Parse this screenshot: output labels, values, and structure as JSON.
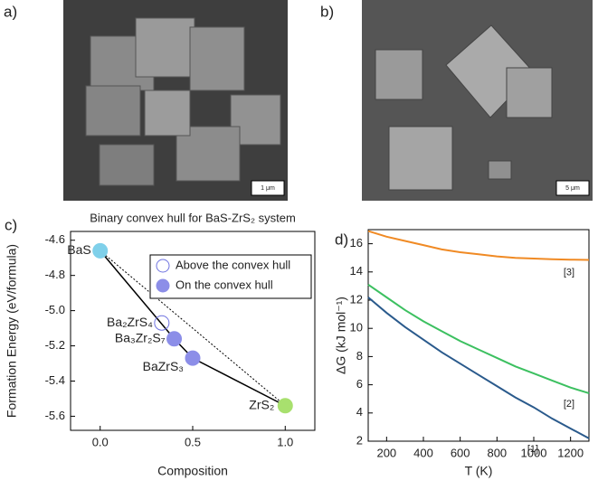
{
  "panels": {
    "a": {
      "label": "a)",
      "scale_bar": "1 μm"
    },
    "b": {
      "label": "b)",
      "scale_bar": "5 μm"
    }
  },
  "chart_data": [
    {
      "type": "scatter",
      "panel_label": "c)",
      "title": "Binary convex hull for BaS-ZrS₂ system",
      "x_label": "Composition",
      "y_label": "Formation Energy (eV/formula)",
      "xlim": [
        -0.16,
        1.16
      ],
      "ylim": [
        -5.68,
        -4.55
      ],
      "xticks": [
        {
          "value": 0,
          "label": "0.0"
        },
        0.5,
        {
          "value": 1,
          "label": "1.0"
        }
      ],
      "yticks": [
        -4.6,
        -4.8,
        {
          "value": -5,
          "label": "-5.0"
        },
        -5.2,
        -5.4,
        -5.6
      ],
      "legend": "upper right",
      "series": [
        {
          "name": "Above the convex hull",
          "marker": "open",
          "color": "#6f73e0",
          "x": [
            0.333
          ],
          "values": [
            -5.07
          ],
          "point_labels": [
            "Ba₂ZrS₄"
          ]
        },
        {
          "name": "On the convex hull",
          "marker": "filled",
          "color": "#8c8ee8",
          "x": [
            0,
            0.4,
            0.5,
            1
          ],
          "values": [
            -4.66,
            -5.16,
            -5.27,
            -5.54
          ],
          "point_labels": [
            "BaS",
            "Ba₃Zr₂S₇",
            "BaZrS₃",
            "ZrS₂"
          ],
          "point_colors": [
            "#7fd0ea",
            "#8c8ee8",
            "#8c8ee8",
            "#a8e06e"
          ]
        }
      ]
    },
    {
      "type": "line",
      "panel_label": "d)",
      "x_label": "T (K)",
      "y_label": "ΔG (kJ mol⁻¹)",
      "xlim": [
        100,
        1300
      ],
      "ylim": [
        2,
        17
      ],
      "xticks": [
        200,
        400,
        600,
        800,
        1000,
        1200
      ],
      "yticks": [
        2,
        4,
        6,
        8,
        10,
        12,
        14,
        16
      ],
      "x": [
        100,
        200,
        300,
        400,
        500,
        600,
        700,
        800,
        900,
        1000,
        1100,
        1200,
        1300
      ],
      "series": [
        {
          "name": "[1]",
          "color": "#2a5a8c",
          "values": [
            12.2,
            11.1,
            10.1,
            9.2,
            8.3,
            7.5,
            6.7,
            5.9,
            5.1,
            4.4,
            3.6,
            2.9,
            2.2
          ]
        },
        {
          "name": "[2]",
          "color": "#3cc060",
          "values": [
            13.1,
            12.2,
            11.3,
            10.5,
            9.8,
            9.1,
            8.5,
            7.9,
            7.3,
            6.8,
            6.3,
            5.8,
            5.4
          ]
        },
        {
          "name": "[3]",
          "color": "#f08a24",
          "values": [
            16.9,
            16.5,
            16.2,
            15.9,
            15.6,
            15.4,
            15.25,
            15.1,
            15.0,
            14.95,
            14.9,
            14.87,
            14.85
          ]
        }
      ]
    }
  ]
}
